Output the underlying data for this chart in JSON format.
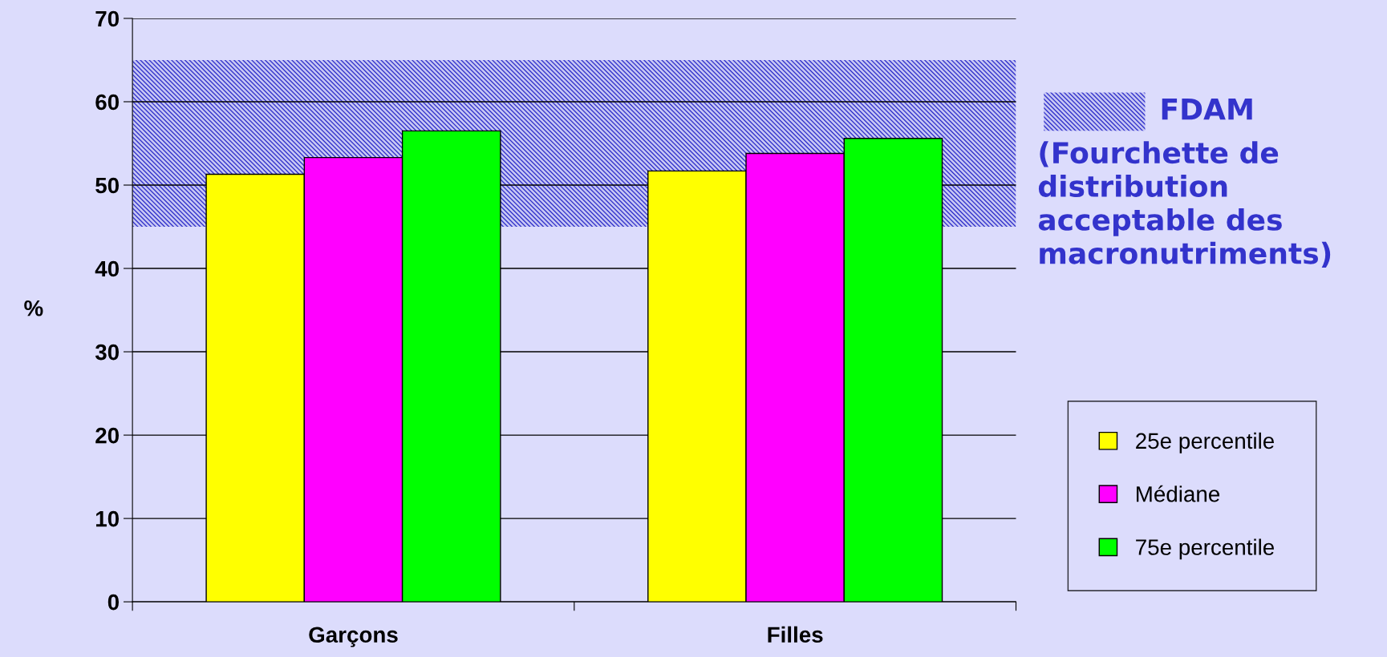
{
  "chart_data": {
    "type": "bar",
    "categories": [
      "Garçons",
      "Filles"
    ],
    "ylabel": "%",
    "ylim": [
      0,
      70
    ],
    "yticks": [
      0,
      10,
      20,
      30,
      40,
      50,
      60,
      70
    ],
    "grid": "y",
    "legend": "right",
    "series": [
      {
        "name": "25e percentile",
        "color": "#ffff00",
        "values": [
          51.3,
          51.7
        ]
      },
      {
        "name": "Médiane",
        "color": "#ff00ff",
        "values": [
          53.3,
          53.8
        ]
      },
      {
        "name": "75e percentile",
        "color": "#00ff00",
        "values": [
          56.5,
          55.6
        ]
      }
    ],
    "bands": [
      {
        "axis": "y",
        "from": 45,
        "to": 65,
        "label": "FDAM\n(Fourchette de\ndistribution\nacceptable des\nmacronutriments)",
        "color": "#3333cc"
      }
    ]
  }
}
